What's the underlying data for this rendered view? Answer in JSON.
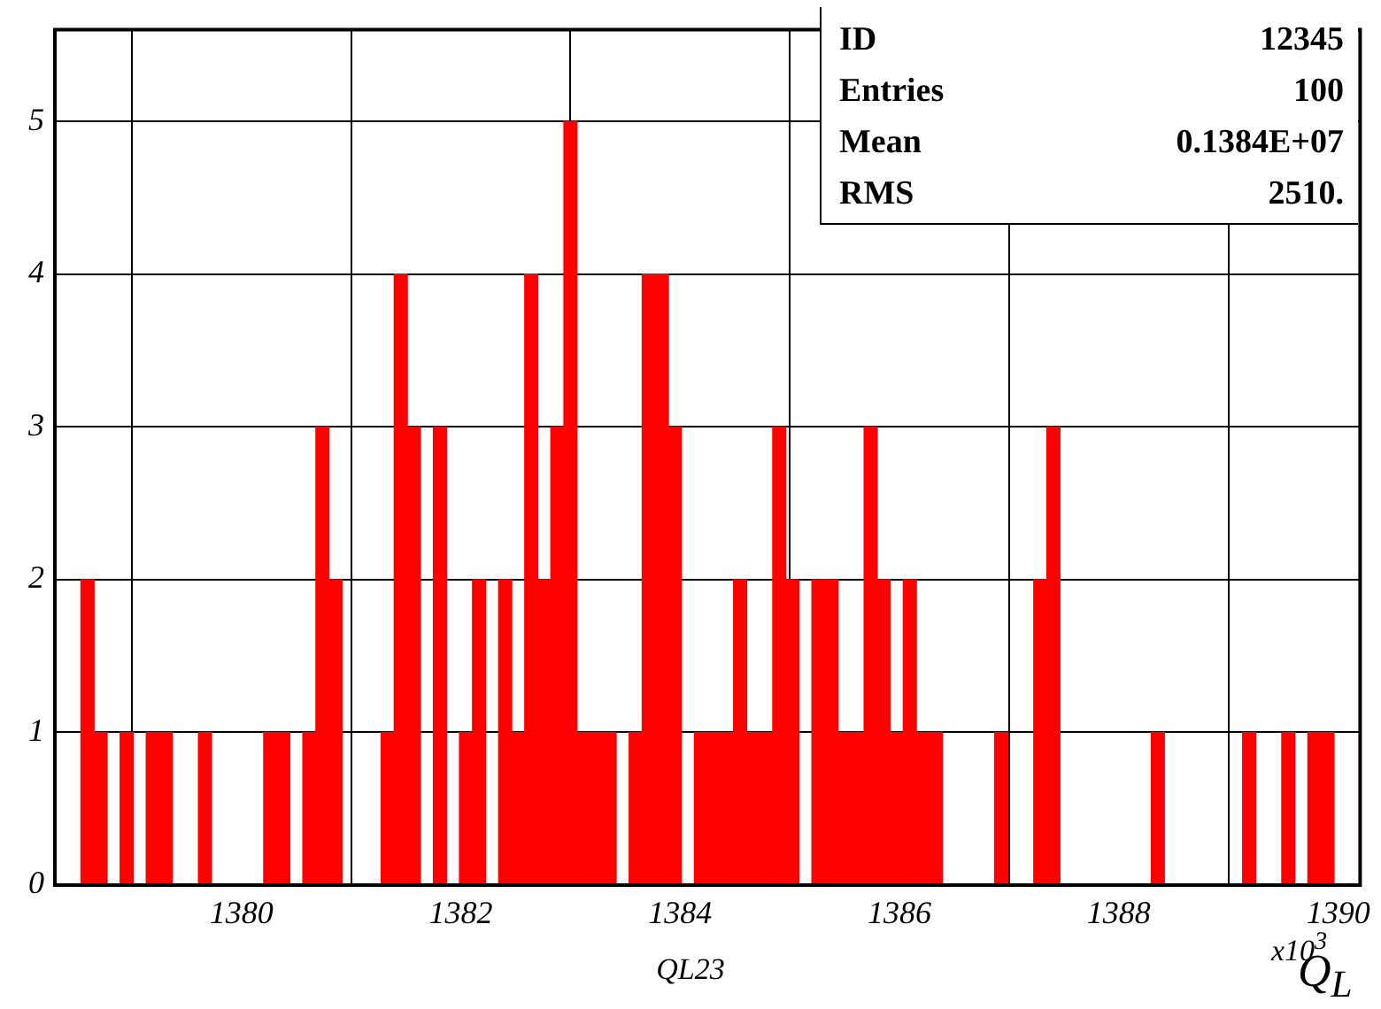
{
  "chart_data": {
    "type": "histogram",
    "title": "QL23",
    "xlabel": "Q$_{L}$",
    "bins": [
      1378.3,
      1378.419,
      1378.538,
      1378.657,
      1378.776,
      1378.895,
      1379.014,
      1379.133,
      1379.252,
      1379.371,
      1379.49,
      1379.609,
      1379.728,
      1379.847,
      1379.966,
      1380.085,
      1380.204,
      1380.323,
      1380.442,
      1380.561,
      1380.68,
      1380.799,
      1380.918,
      1381.037,
      1381.156,
      1381.275,
      1381.394,
      1381.513,
      1381.632,
      1381.751,
      1381.87,
      1381.989,
      1382.108,
      1382.227,
      1382.346,
      1382.465,
      1382.584,
      1382.703,
      1382.822,
      1382.941,
      1383.06,
      1383.179,
      1383.298,
      1383.417,
      1383.536,
      1383.655,
      1383.774,
      1383.893,
      1384.012,
      1384.131,
      1384.25,
      1384.369,
      1384.488,
      1384.607,
      1384.726,
      1384.845,
      1384.964,
      1385.083,
      1385.202,
      1385.321,
      1385.44,
      1385.559,
      1385.678,
      1385.797,
      1385.916,
      1386.035,
      1386.154,
      1386.273,
      1386.392,
      1386.511,
      1386.63,
      1386.749,
      1386.868,
      1386.987,
      1387.106,
      1387.225,
      1387.344,
      1387.463,
      1387.582,
      1387.701,
      1387.82,
      1387.939,
      1388.058,
      1388.177,
      1388.296,
      1388.415,
      1388.534,
      1388.653,
      1388.772,
      1388.891,
      1389.01,
      1389.129,
      1389.248,
      1389.367,
      1389.486,
      1389.605,
      1389.724,
      1389.843,
      1389.962,
      1390.081,
      1390.2
    ],
    "values": [
      0,
      0,
      2,
      1,
      0,
      1,
      0,
      1,
      1,
      0,
      0,
      1,
      0,
      0,
      0,
      0,
      1,
      1,
      0,
      1,
      3,
      2,
      0,
      0,
      0,
      1,
      4,
      3,
      0,
      3,
      0,
      1,
      2,
      0,
      2,
      1,
      4,
      2,
      3,
      5,
      1,
      1,
      1,
      0,
      1,
      4,
      4,
      3,
      0,
      1,
      1,
      1,
      2,
      1,
      1,
      3,
      2,
      0,
      2,
      2,
      1,
      1,
      3,
      2,
      1,
      2,
      1,
      1,
      0,
      0,
      0,
      0,
      1,
      0,
      0,
      2,
      3,
      0,
      0,
      0,
      0,
      0,
      0,
      0,
      1,
      0,
      0,
      0,
      0,
      0,
      0,
      1,
      0,
      0,
      1,
      0,
      1,
      1,
      0,
      0
    ],
    "color": "#ff0000",
    "xlim": [
      1378.3,
      1390.2
    ],
    "xticks": [
      1380,
      1382,
      1384,
      1386,
      1388,
      1390
    ],
    "ylim": [
      0,
      5.6
    ],
    "yticks": [
      0,
      1,
      2,
      3,
      4,
      5
    ],
    "grid": true,
    "legend": false,
    "annotations": [
      "ID",
      "12345",
      "Entries",
      "100",
      "Mean",
      "0.1384E+07",
      "RMS",
      "2510.",
      "x10$^{3}$"
    ]
  }
}
